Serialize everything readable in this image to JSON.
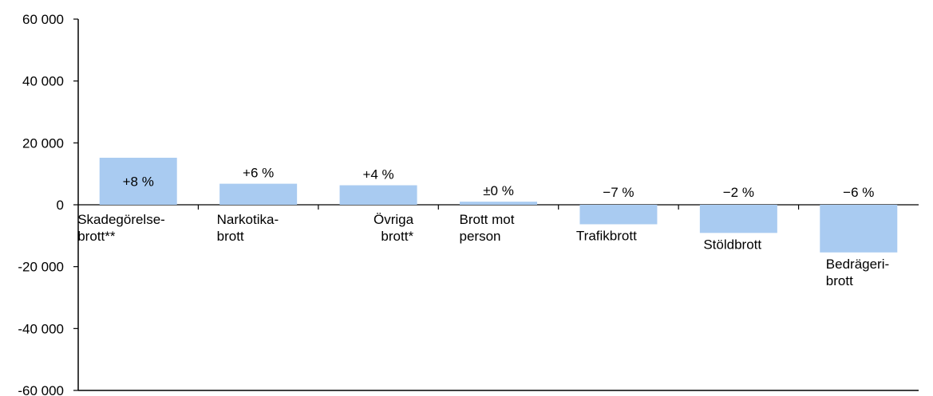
{
  "chart_data": {
    "type": "bar",
    "ylim": [
      -60000,
      60000
    ],
    "y_ticks": [
      -60000,
      -40000,
      -20000,
      0,
      20000,
      40000,
      60000
    ],
    "y_tick_labels": [
      "-60 000",
      "-40 000",
      "-20 000",
      "0",
      "20 000",
      "40 000",
      "60 000"
    ],
    "bar_color": "#a9cbf1",
    "grid": false,
    "categories": [
      [
        "Skadegörelse-",
        "brott**"
      ],
      [
        "Narkotika-",
        "brott"
      ],
      [
        "Övriga",
        "brott*"
      ],
      [
        "Brott mot",
        "person"
      ],
      [
        "Trafikbrott"
      ],
      [
        "Stöldbrott"
      ],
      [
        "Bedrägeri-",
        "brott"
      ]
    ],
    "values": [
      15200,
      6800,
      6300,
      1000,
      -6300,
      -9100,
      -15400
    ],
    "data_labels": [
      "+8 %",
      "+6 %",
      "+4 %",
      "±0 %",
      "−7 %",
      "−2 %",
      "−6 %"
    ]
  }
}
